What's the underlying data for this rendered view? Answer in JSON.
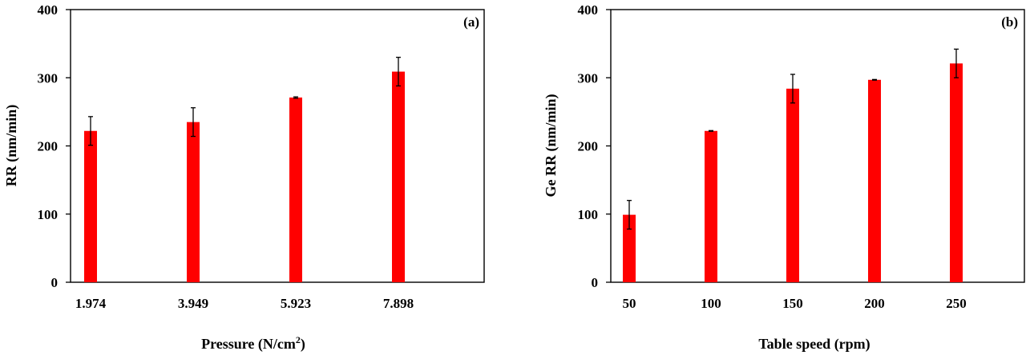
{
  "chart_data": [
    {
      "type": "bar",
      "panel_label": "(a)",
      "xlabel": "Pressure (N/cm",
      "xlabel_sup": "2",
      "xlabel_end": ")",
      "ylabel": "RR (nm/min)",
      "categories": [
        "1.974",
        "3.949",
        "5.923",
        "7.898"
      ],
      "values": [
        222,
        235,
        271,
        309
      ],
      "errors": [
        21,
        21,
        1,
        21
      ],
      "ylim": [
        0,
        400
      ],
      "yticks": [
        "0",
        "100",
        "200",
        "300",
        "400"
      ],
      "grid": false,
      "bar_color": "#ff0000"
    },
    {
      "type": "bar",
      "panel_label": "(b)",
      "xlabel": "Table speed (rpm)",
      "ylabel": "Ge RR (nm/min)",
      "categories": [
        "50",
        "100",
        "150",
        "200",
        "250"
      ],
      "values": [
        99,
        222,
        284,
        297,
        321
      ],
      "errors": [
        21,
        0.5,
        21,
        0.5,
        21
      ],
      "ylim": [
        0,
        400
      ],
      "yticks": [
        "0",
        "100",
        "200",
        "300",
        "400"
      ],
      "grid": false,
      "bar_color": "#ff0000"
    }
  ]
}
